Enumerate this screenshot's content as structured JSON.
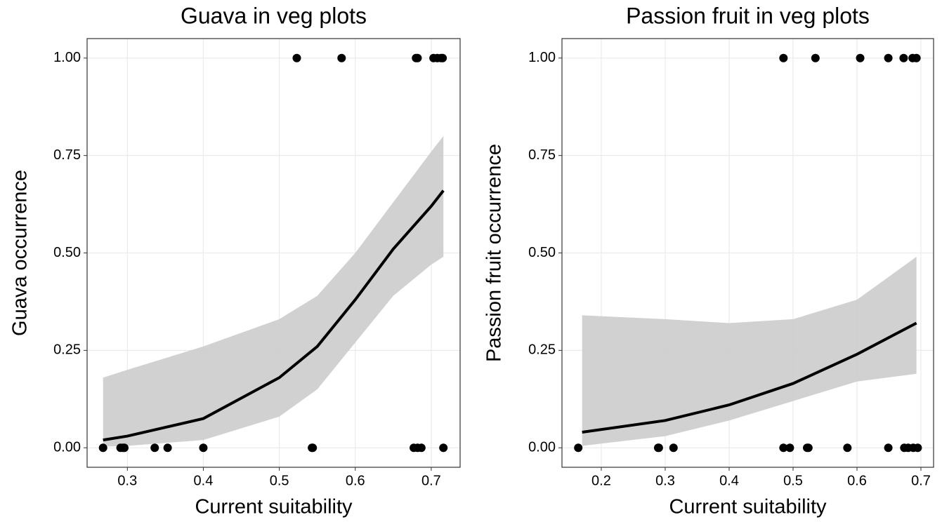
{
  "chart_data": [
    {
      "type": "scatter",
      "title": "Guava in veg plots",
      "x_label": "Current suitability",
      "y_label": "Guava occurrence",
      "x": [
        0.523,
        0.582,
        0.68,
        0.682,
        0.703,
        0.708,
        0.713,
        0.715,
        0.268,
        0.291,
        0.294,
        0.296,
        0.336,
        0.353,
        0.4,
        0.543,
        0.544,
        0.677,
        0.682,
        0.687,
        0.716
      ],
      "values": [
        1,
        1,
        1,
        1,
        1,
        1,
        1,
        1,
        0,
        0,
        0,
        0,
        0,
        0,
        0,
        0,
        0,
        0,
        0,
        0,
        0
      ],
      "color": "#000000",
      "fit": {
        "x": [
          0.268,
          0.3,
          0.4,
          0.5,
          0.55,
          0.6,
          0.65,
          0.7,
          0.716
        ],
        "values": [
          0.02,
          0.03,
          0.075,
          0.18,
          0.26,
          0.38,
          0.51,
          0.62,
          0.66
        ],
        "lower": [
          0.003,
          0.005,
          0.02,
          0.08,
          0.15,
          0.27,
          0.39,
          0.47,
          0.49
        ],
        "upper": [
          0.18,
          0.2,
          0.26,
          0.33,
          0.39,
          0.5,
          0.63,
          0.76,
          0.8
        ],
        "color": "#000000",
        "band_color": "#cccccc"
      },
      "xlim": [
        0.247,
        0.738
      ],
      "ylim": [
        -0.05,
        1.05
      ],
      "xticks": [
        0.3,
        0.4,
        0.5,
        0.6,
        0.7
      ],
      "yticks": [
        {
          "value": 0,
          "label": "0.00"
        },
        {
          "value": 0.25,
          "label": "0.25"
        },
        {
          "value": 0.5,
          "label": "0.50"
        },
        {
          "value": 0.75,
          "label": "0.75"
        },
        {
          "value": 1,
          "label": "1.00"
        }
      ],
      "grid": true
    },
    {
      "type": "scatter",
      "title": "Passion fruit in veg plots",
      "x_label": "Current suitability",
      "y_label": "Passion fruit occurrence",
      "x": [
        0.485,
        0.535,
        0.605,
        0.649,
        0.673,
        0.687,
        0.693,
        0.164,
        0.289,
        0.29,
        0.313,
        0.485,
        0.495,
        0.522,
        0.524,
        0.585,
        0.649,
        0.674,
        0.68,
        0.688,
        0.695
      ],
      "values": [
        1,
        1,
        1,
        1,
        1,
        1,
        1,
        0,
        0,
        0,
        0,
        0,
        0,
        0,
        0,
        0,
        0,
        0,
        0,
        0,
        0
      ],
      "color": "#000000",
      "fit": {
        "x": [
          0.17,
          0.3,
          0.4,
          0.5,
          0.6,
          0.693
        ],
        "values": [
          0.04,
          0.07,
          0.11,
          0.165,
          0.24,
          0.32
        ],
        "lower": [
          0.005,
          0.03,
          0.07,
          0.12,
          0.17,
          0.19
        ],
        "upper": [
          0.34,
          0.33,
          0.32,
          0.33,
          0.38,
          0.49
        ],
        "color": "#000000",
        "band_color": "#cccccc"
      },
      "xlim": [
        0.1385,
        0.7198
      ],
      "ylim": [
        -0.05,
        1.05
      ],
      "xticks": [
        0.2,
        0.3,
        0.4,
        0.5,
        0.6,
        0.7
      ],
      "yticks": [
        {
          "value": 0,
          "label": "0.00"
        },
        {
          "value": 0.25,
          "label": "0.25"
        },
        {
          "value": 0.5,
          "label": "0.50"
        },
        {
          "value": 0.75,
          "label": "0.75"
        },
        {
          "value": 1,
          "label": "1.00"
        }
      ],
      "grid": true
    }
  ]
}
